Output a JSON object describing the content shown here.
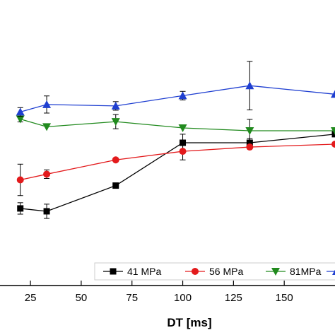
{
  "chart_data": {
    "type": "line",
    "title": "",
    "xlabel": "DT [ms]",
    "ylabel": "",
    "xlim": [
      10,
      175
    ],
    "ylim": [
      0,
      1
    ],
    "x_ticks": [
      25,
      50,
      75,
      100,
      125,
      150
    ],
    "grid": false,
    "legend_position": "bottom",
    "series": [
      {
        "name": "41 MPa",
        "color": "#000000",
        "marker": "square",
        "x": [
          20,
          33,
          67,
          100,
          133,
          175
        ],
        "y": [
          0.27,
          0.26,
          0.35,
          0.5,
          0.5,
          0.53
        ],
        "err": [
          0.02,
          0.025,
          0.0,
          0.03,
          0.015,
          0.0
        ]
      },
      {
        "name": "56 MPa",
        "color": "#e31a1c",
        "marker": "circle",
        "x": [
          20,
          33,
          67,
          100,
          133,
          175
        ],
        "y": [
          0.37,
          0.39,
          0.44,
          0.47,
          0.485,
          0.495
        ],
        "err": [
          0.055,
          0.015,
          0.0,
          0.03,
          0.0,
          0.0
        ]
      },
      {
        "name": "81MPa",
        "color": "#218a1e",
        "marker": "triangle-down",
        "x": [
          20,
          33,
          67,
          100,
          133,
          175
        ],
        "y": [
          0.583,
          0.556,
          0.574,
          0.552,
          0.542,
          0.542
        ],
        "err": [
          0.01,
          0.0,
          0.025,
          0.0,
          0.04,
          0.0
        ]
      },
      {
        "name": "",
        "color": "#1f3fd1",
        "marker": "triangle-up",
        "x": [
          20,
          33,
          67,
          100,
          133,
          175
        ],
        "y": [
          0.608,
          0.634,
          0.629,
          0.665,
          0.7,
          0.67
        ],
        "err": [
          0.015,
          0.03,
          0.015,
          0.015,
          0.085,
          0.0
        ]
      }
    ]
  }
}
